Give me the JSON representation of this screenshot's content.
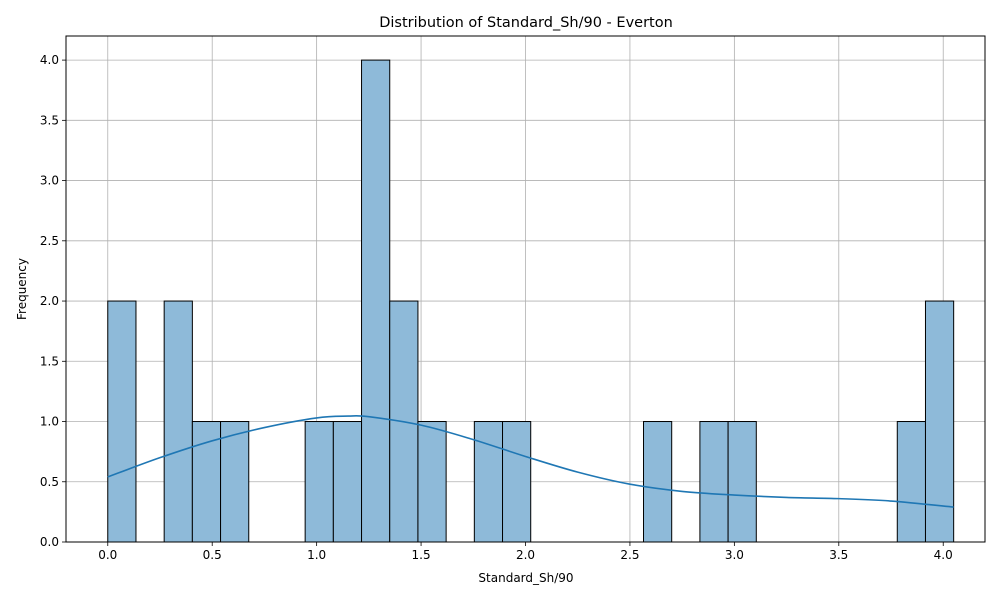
{
  "chart_data": {
    "type": "bar",
    "subtype": "histogram-with-kde",
    "title": "Distribution of Standard_Sh/90 - Everton",
    "xlabel": "Standard_Sh/90",
    "ylabel": "Frequency",
    "xlim": [
      -0.2,
      4.2
    ],
    "ylim": [
      0,
      4.2
    ],
    "x_ticks": [
      0.0,
      0.5,
      1.0,
      1.5,
      2.0,
      2.5,
      3.0,
      3.5,
      4.0
    ],
    "x_tick_labels": [
      "0.0",
      "0.5",
      "1.0",
      "1.5",
      "2.0",
      "2.5",
      "3.0",
      "3.5",
      "4.0"
    ],
    "y_ticks": [
      0.0,
      0.5,
      1.0,
      1.5,
      2.0,
      2.5,
      3.0,
      3.5,
      4.0
    ],
    "y_tick_labels": [
      "0.0",
      "0.5",
      "1.0",
      "1.5",
      "2.0",
      "2.5",
      "3.0",
      "3.5",
      "4.0"
    ],
    "grid": true,
    "bins": {
      "start": 0.0,
      "width": 0.135,
      "values": [
        2,
        0,
        2,
        1,
        1,
        0,
        0,
        1,
        1,
        4,
        2,
        1,
        0,
        1,
        1,
        0,
        0,
        0,
        0,
        1,
        0,
        1,
        1,
        0,
        0,
        0,
        0,
        0,
        1,
        2
      ]
    },
    "kde": {
      "x": [
        0.0,
        0.25,
        0.5,
        0.75,
        1.0,
        1.15,
        1.25,
        1.5,
        1.75,
        2.0,
        2.25,
        2.5,
        2.75,
        3.0,
        3.25,
        3.5,
        3.75,
        4.05
      ],
      "y": [
        0.54,
        0.7,
        0.84,
        0.95,
        1.03,
        1.045,
        1.04,
        0.97,
        0.85,
        0.71,
        0.58,
        0.48,
        0.42,
        0.39,
        0.37,
        0.36,
        0.34,
        0.29
      ]
    },
    "colors": {
      "bar_fill": "#8ebad9",
      "bar_edge": "#000000",
      "kde_line": "#1f77b4",
      "grid": "#b0b0b0"
    }
  }
}
